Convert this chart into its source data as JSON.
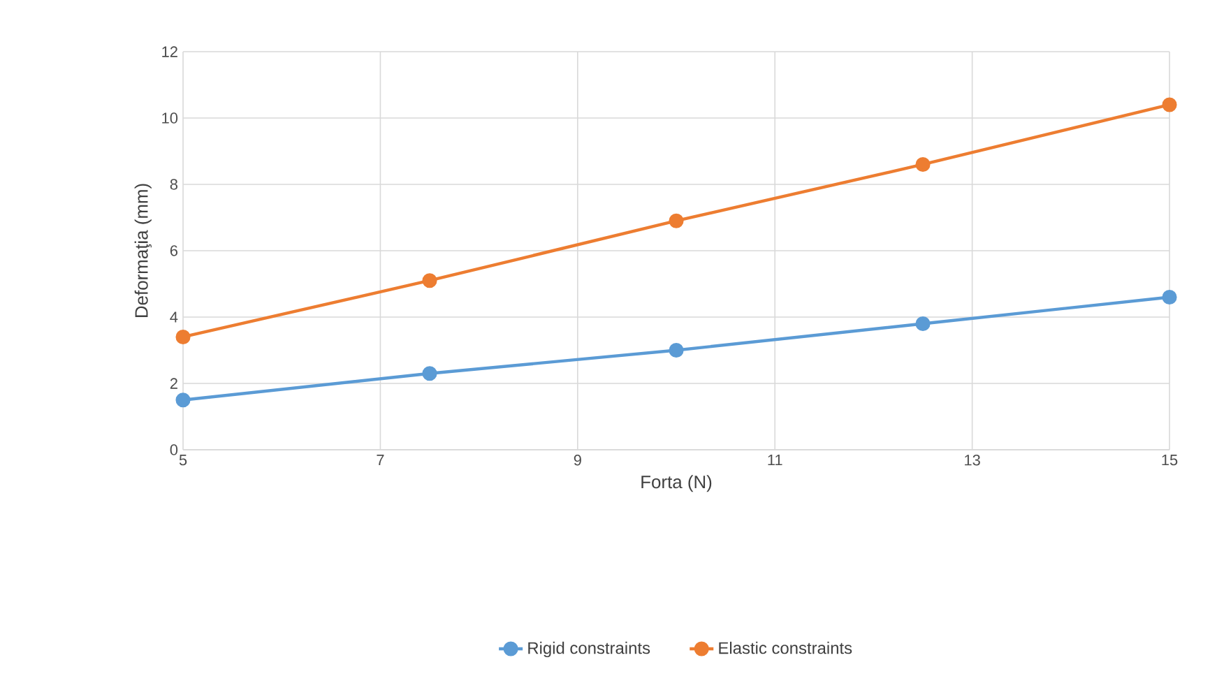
{
  "chart_data": {
    "type": "line",
    "xlabel": "Forta (N)",
    "ylabel": "Deformaţia (mm)",
    "x": [
      5,
      7.5,
      10,
      12.5,
      15
    ],
    "series": [
      {
        "name": "Rigid constraints",
        "color": "#5b9bd5",
        "values": [
          1.5,
          2.3,
          3.0,
          3.8,
          4.6
        ]
      },
      {
        "name": "Elastic constraints",
        "color": "#ed7d31",
        "values": [
          3.4,
          5.1,
          6.9,
          8.6,
          10.4
        ]
      }
    ],
    "xlim": [
      5,
      15
    ],
    "ylim": [
      0,
      12
    ],
    "xticks": [
      5,
      7,
      9,
      11,
      13,
      15
    ],
    "yticks": [
      0,
      2,
      4,
      6,
      8,
      10,
      12
    ],
    "grid": true,
    "legend": "bottom",
    "marker": "circle"
  }
}
